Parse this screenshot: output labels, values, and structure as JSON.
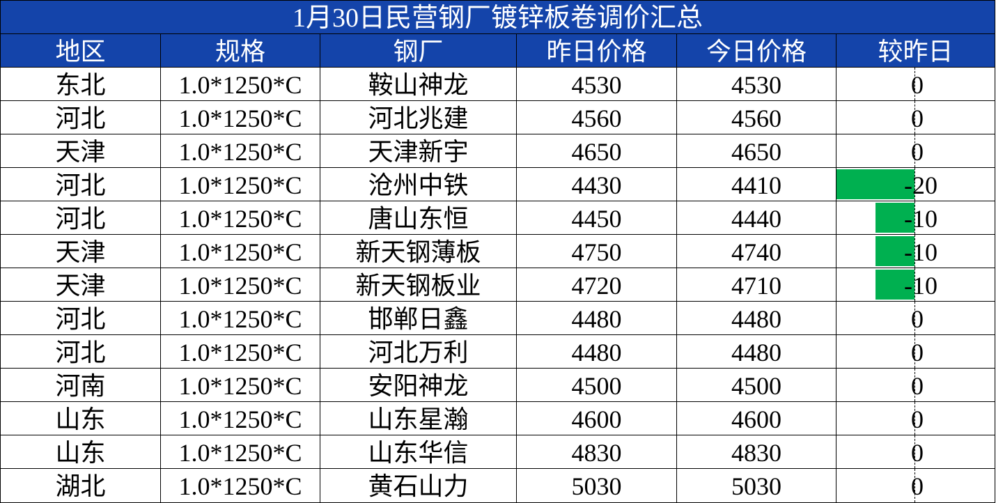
{
  "title": "1月30日民营钢厂镀锌板卷调价汇总",
  "headers": [
    "地区",
    "规格",
    "钢厂",
    "昨日价格",
    "今日价格",
    "较昨日"
  ],
  "colors": {
    "header_bg": "#1444aa",
    "header_text": "#ffffff",
    "negative_bar": "#00b050"
  },
  "rows": [
    {
      "region": "东北",
      "spec": "1.0*1250*C",
      "mill": "鞍山神龙",
      "yesterday": "4530",
      "today": "4530",
      "change": "0"
    },
    {
      "region": "河北",
      "spec": "1.0*1250*C",
      "mill": "河北兆建",
      "yesterday": "4560",
      "today": "4560",
      "change": "0"
    },
    {
      "region": "天津",
      "spec": "1.0*1250*C",
      "mill": "天津新宇",
      "yesterday": "4650",
      "today": "4650",
      "change": "0"
    },
    {
      "region": "河北",
      "spec": "1.0*1250*C",
      "mill": "沧州中铁",
      "yesterday": "4430",
      "today": "4410",
      "change": "-20"
    },
    {
      "region": "河北",
      "spec": "1.0*1250*C",
      "mill": "唐山东恒",
      "yesterday": "4450",
      "today": "4440",
      "change": "-10"
    },
    {
      "region": "天津",
      "spec": "1.0*1250*C",
      "mill": "新天钢薄板",
      "yesterday": "4750",
      "today": "4740",
      "change": "-10"
    },
    {
      "region": "天津",
      "spec": "1.0*1250*C",
      "mill": "新天钢板业",
      "yesterday": "4720",
      "today": "4710",
      "change": "-10"
    },
    {
      "region": "河北",
      "spec": "1.0*1250*C",
      "mill": "邯郸日鑫",
      "yesterday": "4480",
      "today": "4480",
      "change": "0"
    },
    {
      "region": "河北",
      "spec": "1.0*1250*C",
      "mill": "河北万利",
      "yesterday": "4480",
      "today": "4480",
      "change": "0"
    },
    {
      "region": "河南",
      "spec": "1.0*1250*C",
      "mill": "安阳神龙",
      "yesterday": "4500",
      "today": "4500",
      "change": "0"
    },
    {
      "region": "山东",
      "spec": "1.0*1250*C",
      "mill": "山东星瀚",
      "yesterday": "4600",
      "today": "4600",
      "change": "0"
    },
    {
      "region": "山东",
      "spec": "1.0*1250*C",
      "mill": "山东华信",
      "yesterday": "4830",
      "today": "4830",
      "change": "0"
    },
    {
      "region": "湖北",
      "spec": "1.0*1250*C",
      "mill": "黄石山力",
      "yesterday": "5030",
      "today": "5030",
      "change": "0"
    }
  ]
}
